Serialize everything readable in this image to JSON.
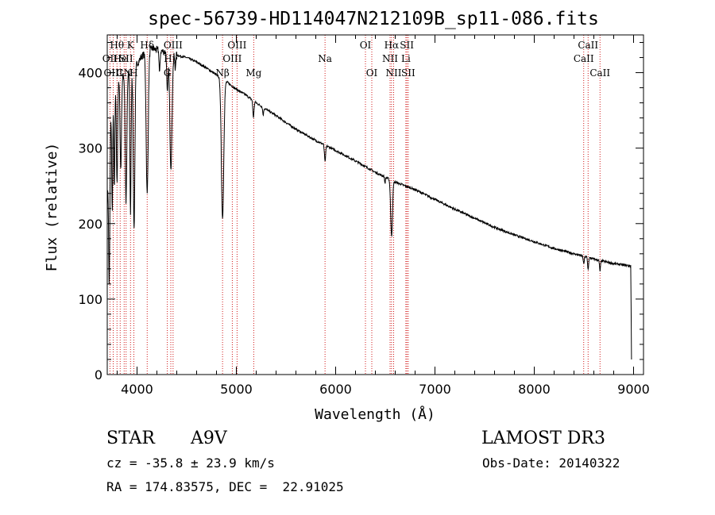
{
  "chart_data": {
    "type": "line",
    "title": "spec-56739-HD114047N212109B_sp11-086.fits",
    "xlabel": "Wavelength (Å)",
    "ylabel": "Flux (relative)",
    "xlim": [
      3700,
      9100
    ],
    "ylim": [
      0,
      450
    ],
    "xticks": [
      4000,
      5000,
      6000,
      7000,
      8000,
      9000
    ],
    "yticks": [
      0,
      100,
      200,
      300,
      400
    ],
    "grid": false,
    "continuum": {
      "x": [
        3700,
        3720,
        3760,
        3800,
        3850,
        3900,
        3950,
        4000,
        4050,
        4100,
        4150,
        4200,
        4300,
        4400,
        4500,
        4600,
        4700,
        4800,
        4900,
        5000,
        5100,
        5200,
        5400,
        5600,
        5800,
        6000,
        6200,
        6400,
        6600,
        6800,
        7000,
        7200,
        7400,
        7600,
        7800,
        8000,
        8200,
        8400,
        8600,
        8800,
        8970
      ],
      "y": [
        230,
        320,
        370,
        385,
        395,
        400,
        405,
        412,
        422,
        428,
        432,
        430,
        427,
        423,
        420,
        414,
        406,
        397,
        388,
        378,
        370,
        360,
        343,
        325,
        310,
        297,
        283,
        268,
        255,
        245,
        232,
        219,
        207,
        195,
        185,
        176,
        167,
        160,
        153,
        147,
        144
      ]
    },
    "absorption": [
      {
        "x": 3720,
        "depth": 200,
        "width": 6
      },
      {
        "x": 3750,
        "depth": 140,
        "width": 5
      },
      {
        "x": 3771,
        "depth": 130,
        "width": 5
      },
      {
        "x": 3798,
        "depth": 130,
        "width": 6
      },
      {
        "x": 3836,
        "depth": 120,
        "width": 7
      },
      {
        "x": 3889,
        "depth": 170,
        "width": 8
      },
      {
        "x": 3934,
        "depth": 190,
        "width": 6
      },
      {
        "x": 3970,
        "depth": 215,
        "width": 8
      },
      {
        "x": 4102,
        "depth": 190,
        "width": 10
      },
      {
        "x": 4227,
        "depth": 30,
        "width": 5
      },
      {
        "x": 4305,
        "depth": 55,
        "width": 6
      },
      {
        "x": 4341,
        "depth": 150,
        "width": 11
      },
      {
        "x": 4384,
        "depth": 20,
        "width": 4
      },
      {
        "x": 4861,
        "depth": 185,
        "width": 12
      },
      {
        "x": 5172,
        "depth": 22,
        "width": 6
      },
      {
        "x": 5270,
        "depth": 10,
        "width": 5
      },
      {
        "x": 5893,
        "depth": 22,
        "width": 6
      },
      {
        "x": 6497,
        "depth": 8,
        "width": 4
      },
      {
        "x": 6563,
        "depth": 75,
        "width": 9
      },
      {
        "x": 8498,
        "depth": 10,
        "width": 5
      },
      {
        "x": 8542,
        "depth": 16,
        "width": 5
      },
      {
        "x": 8662,
        "depth": 14,
        "width": 5
      }
    ],
    "spectral_lines": [
      {
        "label": "Hθ",
        "x": 3798,
        "row": 1
      },
      {
        "label": "OII",
        "x": 3727,
        "row": 2
      },
      {
        "label": "He",
        "x": 3830,
        "row": 2
      },
      {
        "label": "SII",
        "x": 3890,
        "row": 2
      },
      {
        "label": "OIII",
        "x": 3760,
        "row": 3
      },
      {
        "label": "CN",
        "x": 3870,
        "row": 3
      },
      {
        "label": "K",
        "x": 3934,
        "row": 1
      },
      {
        "label": "H",
        "x": 3968,
        "row": 3
      },
      {
        "label": "Hδ",
        "x": 4102,
        "row": 1
      },
      {
        "label": "OIII",
        "x": 4363,
        "row": 1
      },
      {
        "label": "Hγ",
        "x": 4340,
        "row": 2
      },
      {
        "label": "G",
        "x": 4305,
        "row": 3
      },
      {
        "label": "OIII",
        "x": 5007,
        "row": 1
      },
      {
        "label": "OIII",
        "x": 4959,
        "row": 2
      },
      {
        "label": "Nβ",
        "x": 4861,
        "row": 3
      },
      {
        "label": "Mg",
        "x": 5175,
        "row": 3
      },
      {
        "label": "Na",
        "x": 5893,
        "row": 2
      },
      {
        "label": "OI",
        "x": 6300,
        "row": 1
      },
      {
        "label": "OI",
        "x": 6364,
        "row": 3
      },
      {
        "label": "Hα",
        "x": 6563,
        "row": 1
      },
      {
        "label": "NII",
        "x": 6548,
        "row": 2
      },
      {
        "label": "NII",
        "x": 6584,
        "row": 3
      },
      {
        "label": "SII",
        "x": 6717,
        "row": 1
      },
      {
        "label": "Li",
        "x": 6707,
        "row": 2
      },
      {
        "label": "SII",
        "x": 6731,
        "row": 3
      },
      {
        "label": "CaII",
        "x": 8542,
        "row": 1
      },
      {
        "label": "CaII",
        "x": 8498,
        "row": 2
      },
      {
        "label": "CaII",
        "x": 8662,
        "row": 3
      }
    ]
  },
  "info": {
    "object_type": "STAR",
    "spectral_class": "A9V",
    "survey": "LAMOST DR3",
    "redshift": "cz = -35.8 ± 23.9 km/s",
    "obs_date": "Obs-Date: 20140322",
    "coords": "RA = 174.83575, DEC =  22.91025"
  },
  "colors": {
    "spectrum": "#000000",
    "line_marker": "#cc0000",
    "axes": "#000000"
  }
}
